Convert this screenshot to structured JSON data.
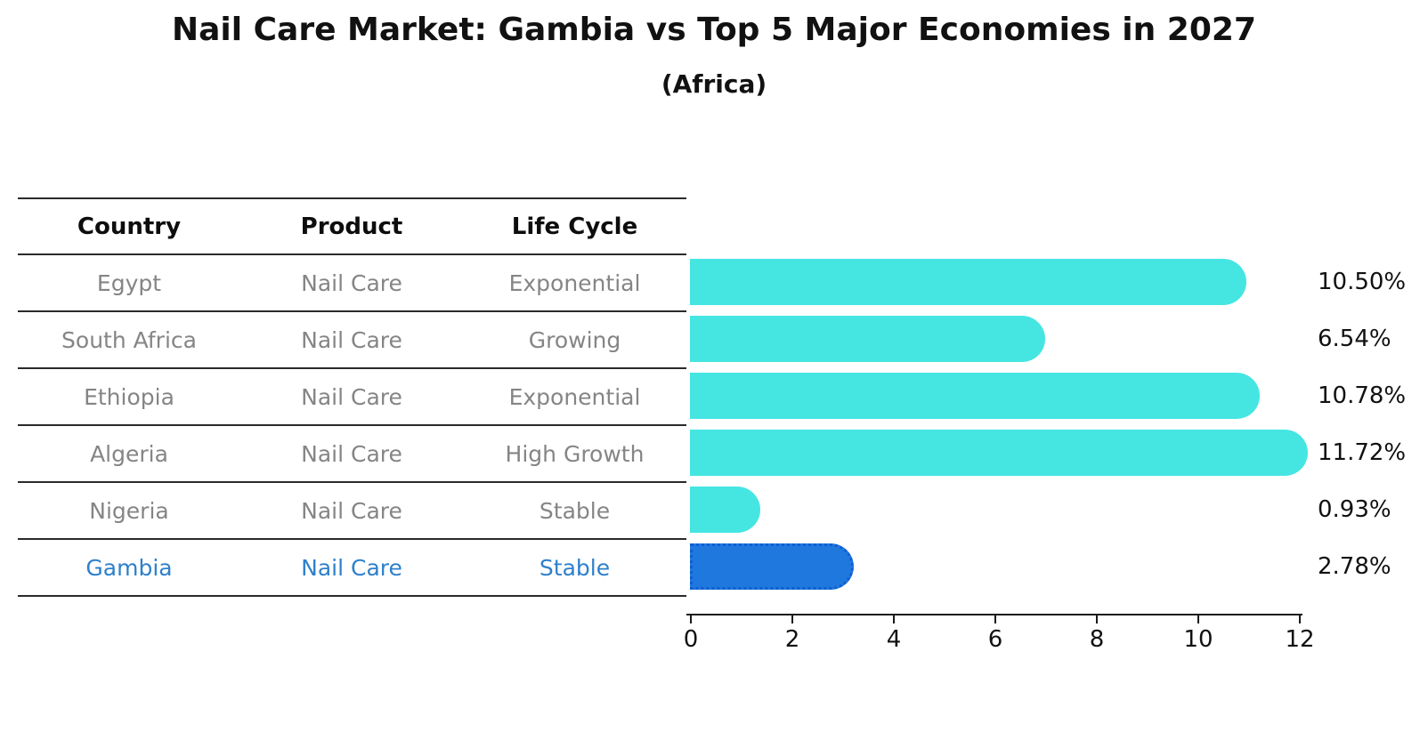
{
  "title": "Nail Care Market: Gambia vs Top 5 Major Economies in 2027",
  "subtitle": "(Africa)",
  "table": {
    "columns": [
      "Country",
      "Product",
      "Life Cycle"
    ],
    "rows": [
      {
        "country": "Egypt",
        "product": "Nail Care",
        "life_cycle": "Exponential",
        "highlight": false
      },
      {
        "country": "South Africa",
        "product": "Nail Care",
        "life_cycle": "Growing",
        "highlight": false
      },
      {
        "country": "Ethiopia",
        "product": "Nail Care",
        "life_cycle": "Exponential",
        "highlight": false
      },
      {
        "country": "Algeria",
        "product": "Nail Care",
        "life_cycle": "High Growth",
        "highlight": false
      },
      {
        "country": "Nigeria",
        "product": "Nail Care",
        "life_cycle": "Stable",
        "highlight": false
      },
      {
        "country": "Gambia",
        "product": "Nail Care",
        "life_cycle": "Stable",
        "highlight": true
      }
    ]
  },
  "chart_data": {
    "type": "bar",
    "orientation": "horizontal",
    "title": "Nail Care Market: Gambia vs Top 5 Major Economies in 2027",
    "subtitle": "(Africa)",
    "categories": [
      "Egypt",
      "South Africa",
      "Ethiopia",
      "Algeria",
      "Nigeria",
      "Gambia"
    ],
    "values": [
      10.5,
      6.54,
      10.78,
      11.72,
      0.93,
      2.78
    ],
    "value_labels": [
      "10.50%",
      "6.54%",
      "10.78%",
      "11.72%",
      "0.93%",
      "2.78%"
    ],
    "xlabel": "",
    "ylabel": "",
    "xlim": [
      0,
      12
    ],
    "xticks": [
      0,
      2,
      4,
      6,
      8,
      10,
      12
    ],
    "grid": false,
    "legend": false,
    "highlight_index": 5,
    "bar_color": "#45e5e2",
    "highlight_bar_color": "#1f78de",
    "highlight_border_color": "#0e5ed2"
  },
  "colors": {
    "bar": "#45e5e2",
    "highlight_bar": "#1f78de",
    "highlight_border": "#0e5ed2",
    "highlight_text": "#2e80cb",
    "text_dark": "#111111",
    "text_gray": "#858585",
    "rule": "#2a2a2a"
  }
}
